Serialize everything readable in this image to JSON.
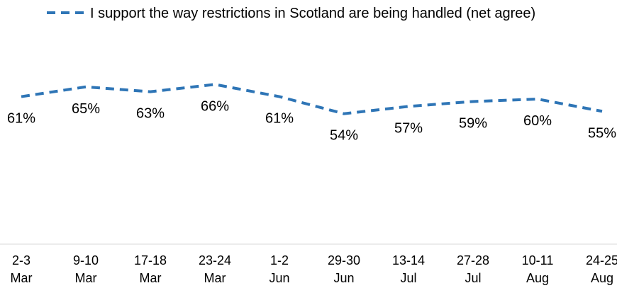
{
  "chart_data": {
    "type": "line",
    "legend_position": "top",
    "grid": false,
    "ylim": [
      0,
      100
    ],
    "categories": [
      [
        "2-3",
        "Mar"
      ],
      [
        "9-10",
        "Mar"
      ],
      [
        "17-18",
        "Mar"
      ],
      [
        "23-24",
        "Mar"
      ],
      [
        "1-2",
        "Jun"
      ],
      [
        "29-30",
        "Jun"
      ],
      [
        "13-14",
        "Jul"
      ],
      [
        "27-28",
        "Jul"
      ],
      [
        "10-11",
        "Aug"
      ],
      [
        "24-25",
        "Aug"
      ]
    ],
    "series": [
      {
        "name": "I support the way restrictions in Scotland are being handled (net agree)",
        "color": "#2E75B6",
        "line_style": "dashed",
        "values": [
          61,
          65,
          63,
          66,
          61,
          54,
          57,
          59,
          60,
          55
        ],
        "labels": [
          "61%",
          "65%",
          "63%",
          "66%",
          "61%",
          "54%",
          "57%",
          "59%",
          "60%",
          "55%"
        ]
      }
    ]
  }
}
